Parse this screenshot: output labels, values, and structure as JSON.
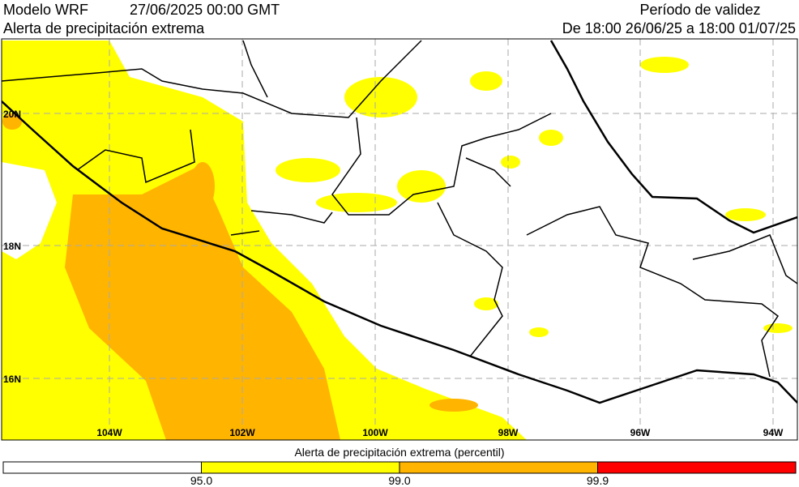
{
  "header": {
    "model": "Modelo WRF",
    "date": "27/06/2025 00:00 GMT",
    "product": "Alerta de precipitación extrema",
    "validity_title": "Período de validez",
    "validity_range": "De 18:00 26/06/25 a 18:00 01/07/25"
  },
  "map": {
    "lat_labels": [
      "20N",
      "18N",
      "16N"
    ],
    "lon_labels": [
      "104W",
      "102W",
      "100W",
      "98W",
      "96W",
      "94W"
    ]
  },
  "legend": {
    "title": "Alerta de precipitación extrema (percentil)",
    "thresholds": [
      "95.0",
      "99.0",
      "99.9"
    ],
    "colors": [
      "#ffffff",
      "#ffff00",
      "#ffb400",
      "#ff0000"
    ]
  }
}
